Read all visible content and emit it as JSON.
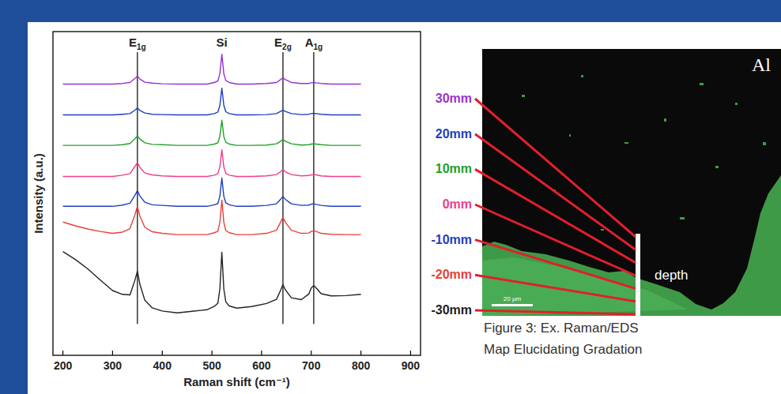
{
  "chart_data": {
    "type": "line",
    "x_label": "Raman shift (cm⁻¹)",
    "y_label": "Intensity (a.u.)",
    "xlim": [
      180,
      920
    ],
    "xticks": [
      200,
      300,
      400,
      500,
      600,
      700,
      800,
      900
    ],
    "ylim": [
      0,
      10.3
    ],
    "tick_labels": "x",
    "annotations": [
      {
        "text": "E",
        "sub": "1g",
        "x": 350
      },
      {
        "text": "Si",
        "x": 520
      },
      {
        "text": "E",
        "sub": "2g",
        "x": 643
      },
      {
        "text": "A",
        "sub": "1g",
        "x": 705
      }
    ],
    "peak_lines": [
      350,
      643,
      705
    ],
    "x": [
      200,
      225,
      250,
      275,
      300,
      320,
      335,
      345,
      350,
      355,
      365,
      380,
      400,
      430,
      460,
      490,
      505,
      512,
      516,
      520,
      524,
      528,
      535,
      550,
      580,
      610,
      630,
      638,
      643,
      648,
      660,
      680,
      695,
      700,
      705,
      710,
      720,
      740,
      770,
      800
    ],
    "series": [
      {
        "name": "30mm",
        "color": "#9933cc",
        "values": [
          8.63,
          8.63,
          8.63,
          8.63,
          8.63,
          8.65,
          8.68,
          8.81,
          8.88,
          8.79,
          8.69,
          8.66,
          8.64,
          8.63,
          8.63,
          8.63,
          8.68,
          8.73,
          8.96,
          9.58,
          8.96,
          8.74,
          8.68,
          8.63,
          8.63,
          8.65,
          8.68,
          8.77,
          8.83,
          8.77,
          8.68,
          8.65,
          8.65,
          8.67,
          8.68,
          8.67,
          8.65,
          8.63,
          8.63,
          8.63
        ]
      },
      {
        "name": "20mm",
        "color": "#1f3fbf",
        "values": [
          7.65,
          7.65,
          7.65,
          7.65,
          7.65,
          7.67,
          7.69,
          7.8,
          7.87,
          7.79,
          7.71,
          7.67,
          7.66,
          7.65,
          7.65,
          7.65,
          7.69,
          7.74,
          7.95,
          8.5,
          7.95,
          7.75,
          7.69,
          7.65,
          7.65,
          7.66,
          7.69,
          7.76,
          7.8,
          7.76,
          7.69,
          7.66,
          7.67,
          7.69,
          7.7,
          7.69,
          7.67,
          7.65,
          7.65,
          7.65
        ]
      },
      {
        "name": "10mm",
        "color": "#22a02a",
        "values": [
          6.68,
          6.68,
          6.68,
          6.68,
          6.68,
          6.7,
          6.74,
          6.89,
          6.98,
          6.88,
          6.76,
          6.71,
          6.7,
          6.68,
          6.68,
          6.68,
          6.72,
          6.76,
          6.96,
          7.48,
          6.96,
          6.78,
          6.72,
          6.68,
          6.68,
          6.69,
          6.73,
          6.81,
          6.86,
          6.81,
          6.73,
          6.69,
          6.7,
          6.72,
          6.73,
          6.72,
          6.7,
          6.68,
          6.68,
          6.68
        ]
      },
      {
        "name": "0mm",
        "color": "#ee3f8c",
        "values": [
          5.69,
          5.69,
          5.69,
          5.69,
          5.69,
          5.73,
          5.78,
          6.01,
          6.14,
          5.98,
          5.8,
          5.74,
          5.71,
          5.69,
          5.69,
          5.69,
          5.73,
          5.78,
          5.99,
          6.54,
          5.99,
          5.79,
          5.73,
          5.69,
          5.69,
          5.71,
          5.75,
          5.84,
          5.91,
          5.84,
          5.75,
          5.71,
          5.72,
          5.74,
          5.75,
          5.74,
          5.71,
          5.69,
          5.69,
          5.69
        ]
      },
      {
        "name": "-10mm",
        "color": "#1f3fbf",
        "values": [
          4.74,
          4.74,
          4.74,
          4.74,
          4.74,
          4.78,
          4.84,
          5.09,
          5.24,
          5.07,
          4.87,
          4.79,
          4.77,
          4.74,
          4.74,
          4.74,
          4.79,
          4.83,
          5.06,
          5.64,
          5.06,
          4.85,
          4.79,
          4.74,
          4.74,
          4.77,
          4.82,
          4.96,
          5.06,
          4.96,
          4.82,
          4.77,
          4.78,
          4.81,
          4.82,
          4.8,
          4.77,
          4.74,
          4.74,
          4.74
        ]
      },
      {
        "name": "-20mm",
        "color": "#e8413a",
        "values": [
          4.24,
          4.12,
          4.02,
          3.94,
          3.88,
          3.92,
          4.03,
          4.47,
          4.74,
          4.43,
          4.07,
          3.93,
          3.88,
          3.84,
          3.84,
          3.84,
          3.9,
          3.95,
          4.23,
          4.94,
          4.23,
          3.97,
          3.9,
          3.84,
          3.84,
          3.88,
          3.98,
          4.23,
          4.39,
          4.23,
          3.98,
          3.88,
          3.89,
          3.94,
          3.96,
          3.94,
          3.88,
          3.85,
          3.84,
          3.84
        ]
      },
      {
        "name": "-30mm",
        "color": "#222222",
        "values": [
          3.3,
          3.05,
          2.75,
          2.4,
          2.06,
          1.94,
          1.92,
          2.39,
          2.68,
          2.26,
          1.75,
          1.51,
          1.41,
          1.35,
          1.4,
          1.45,
          1.56,
          1.66,
          2.11,
          3.28,
          2.11,
          1.7,
          1.57,
          1.5,
          1.55,
          1.65,
          1.78,
          2.06,
          2.25,
          2.08,
          1.83,
          1.77,
          1.95,
          2.14,
          2.22,
          2.14,
          1.96,
          1.89,
          1.9,
          1.94
        ]
      }
    ]
  },
  "map": {
    "element_label": "Al",
    "scale_bar": "20 µm",
    "depth_label": "depth"
  },
  "caption": [
    "Figure 3: Ex. Raman/EDS",
    "Map Elucidating Gradation"
  ]
}
